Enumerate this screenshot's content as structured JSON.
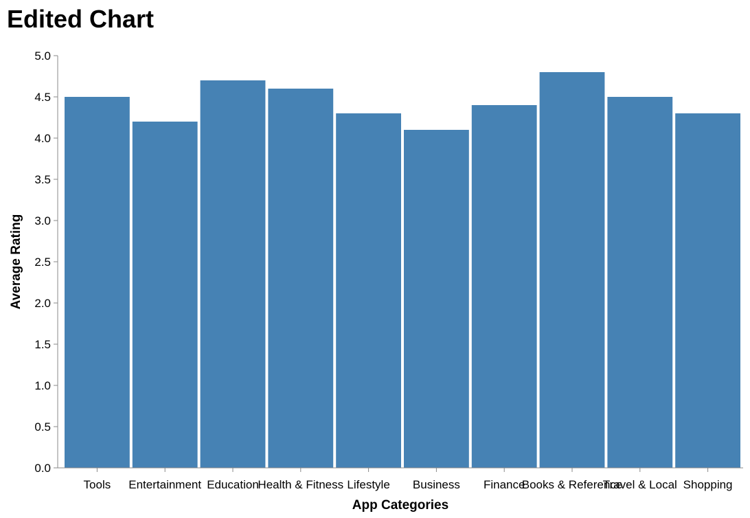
{
  "chart_data": {
    "type": "bar",
    "title": "Edited Chart",
    "xlabel": "App Categories",
    "ylabel": "Average Rating",
    "categories": [
      "Tools",
      "Entertainment",
      "Education",
      "Health & Fitness",
      "Lifestyle",
      "Business",
      "Finance",
      "Books & Reference",
      "Travel & Local",
      "Shopping"
    ],
    "values": [
      4.5,
      4.2,
      4.7,
      4.6,
      4.3,
      4.1,
      4.4,
      4.8,
      4.5,
      4.3
    ],
    "ylim": [
      0,
      5
    ],
    "yticks": [
      "0.0",
      "0.5",
      "1.0",
      "1.5",
      "2.0",
      "2.5",
      "3.0",
      "3.5",
      "4.0",
      "4.5",
      "5.0"
    ],
    "grid": false,
    "bar_color": "#4682b4",
    "axis_color": "#888888"
  }
}
